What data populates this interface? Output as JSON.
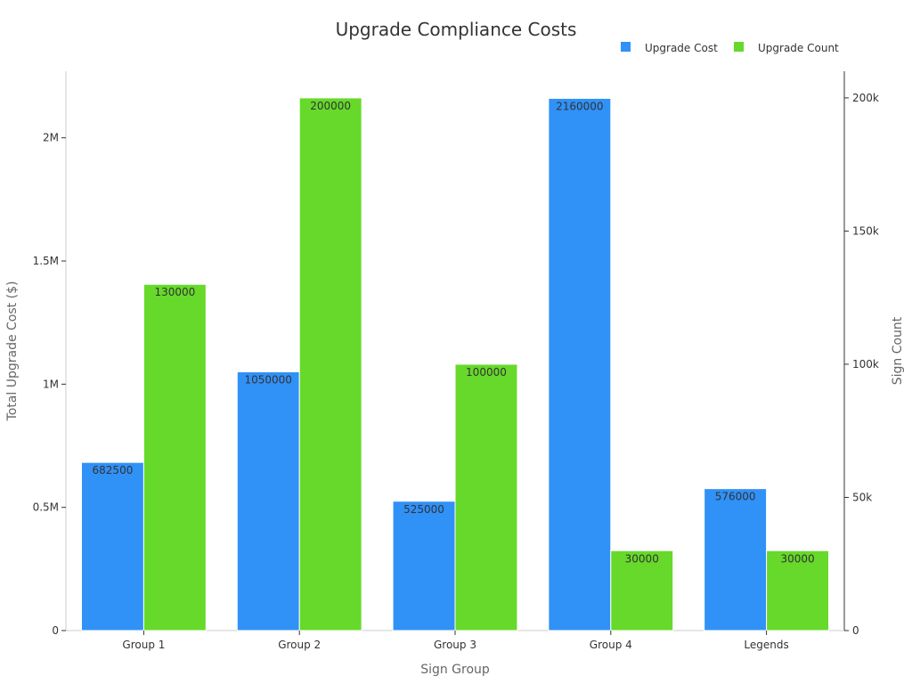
{
  "chart_data": {
    "type": "bar",
    "title": "Upgrade Compliance Costs",
    "xlabel": "Sign Group",
    "ylabel": "Total Upgrade Cost ($)",
    "y2label": "Sign Count",
    "categories": [
      "Group 1",
      "Group 2",
      "Group 3",
      "Group 4",
      "Legends"
    ],
    "series": [
      {
        "name": "Upgrade Cost",
        "axis": "left",
        "color": "#3091f7",
        "values": [
          682500,
          1050000,
          525000,
          2160000,
          576000
        ]
      },
      {
        "name": "Upgrade Count",
        "axis": "right",
        "color": "#66d92a",
        "values": [
          130000,
          200000,
          100000,
          30000,
          30000
        ]
      }
    ],
    "ylim": [
      0,
      2270000
    ],
    "y2lim": [
      0,
      210000
    ],
    "yticks": [
      0,
      500000,
      1000000,
      1500000,
      2000000
    ],
    "yticklabels": [
      "0",
      "0.5M",
      "1M",
      "1.5M",
      "2M"
    ],
    "y2ticks": [
      0,
      50000,
      100000,
      150000,
      200000
    ],
    "y2ticklabels": [
      "0",
      "50k",
      "100k",
      "150k",
      "200k"
    ],
    "legend_position": "top-right",
    "grid": false
  }
}
